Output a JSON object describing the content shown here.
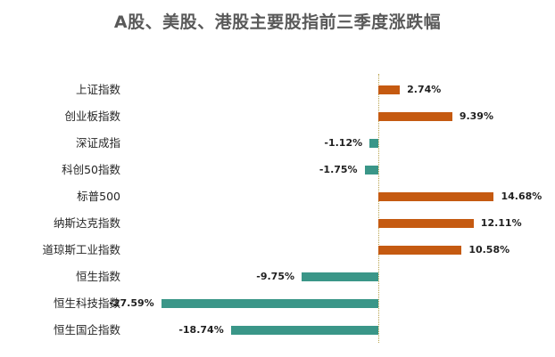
{
  "title": "A股、美股、港股主要股指前三季度涨跌幅",
  "colors": {
    "positive": "#C55A11",
    "negative": "#3A9688",
    "axis": "#B8A24A"
  },
  "chart_data": {
    "type": "bar",
    "orientation": "horizontal",
    "title": "A股、美股、港股主要股指前三季度涨跌幅",
    "xlabel": "",
    "ylabel": "",
    "unit": "%",
    "grid": false,
    "legend": null,
    "categories": [
      "上证指数",
      "创业板指数",
      "深证成指",
      "科创50指数",
      "标普500",
      "纳斯达克指数",
      "道琼斯工业指数",
      "恒生指数",
      "恒生科技指数",
      "恒生国企指数"
    ],
    "values": [
      2.74,
      9.39,
      -1.12,
      -1.75,
      14.68,
      12.11,
      10.58,
      -9.75,
      -27.59,
      -18.74
    ],
    "labels": [
      "2.74%",
      "9.39%",
      "-1.12%",
      "-1.75%",
      "14.68%",
      "12.11%",
      "10.58%",
      "-9.75%",
      "-27.59%",
      "-18.74%"
    ],
    "xlim": [
      -30,
      20
    ]
  }
}
